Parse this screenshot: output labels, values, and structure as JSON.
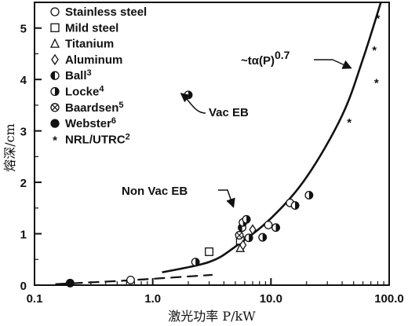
{
  "chart_data": {
    "type": "scatter",
    "x_scale": "log",
    "xlim": [
      0.1,
      100
    ],
    "ylim": [
      0,
      5.5
    ],
    "x_ticks": [
      "0.1",
      "1.0",
      "10.0",
      "100.0"
    ],
    "y_ticks": [
      "0",
      "1",
      "2",
      "3",
      "4",
      "5"
    ],
    "xlabel": "激光功率 P/kW",
    "ylabel": "熔深/cm",
    "grid": false,
    "legend_position": "top-left",
    "legend": [
      {
        "key": "stainless",
        "label": "Stainless steel",
        "sup": "",
        "marker": "circle-open"
      },
      {
        "key": "mild",
        "label": "Mild steel",
        "sup": "",
        "marker": "square-open"
      },
      {
        "key": "titanium",
        "label": "Titanium",
        "sup": "",
        "marker": "triangle-open"
      },
      {
        "key": "aluminum",
        "label": "Aluminum",
        "sup": "",
        "marker": "diamond-open"
      },
      {
        "key": "ball",
        "label": "Ball",
        "sup": "3",
        "marker": "half-left-circle"
      },
      {
        "key": "locke",
        "label": "Locke",
        "sup": "4",
        "marker": "half-right-circle"
      },
      {
        "key": "baardsen",
        "label": "Baardsen",
        "sup": "5",
        "marker": "circle-cross"
      },
      {
        "key": "webster",
        "label": "Webster",
        "sup": "6",
        "marker": "circle-filled"
      },
      {
        "key": "nrl",
        "label": "NRL/UTRC",
        "sup": "2",
        "marker": "asterisk"
      }
    ],
    "series": [
      {
        "key": "stainless",
        "points": [
          [
            0.65,
            0.1
          ],
          [
            9.5,
            1.17
          ],
          [
            14.5,
            1.6
          ]
        ]
      },
      {
        "key": "mild",
        "points": [
          [
            3.0,
            0.65
          ],
          [
            5.5,
            0.87
          ]
        ]
      },
      {
        "key": "titanium",
        "points": [
          [
            5.5,
            0.72
          ]
        ]
      },
      {
        "key": "aluminum",
        "points": [
          [
            5.8,
            0.78
          ],
          [
            7.0,
            1.08
          ]
        ]
      },
      {
        "key": "ball",
        "points": [
          [
            5.7,
            1.12
          ]
        ]
      },
      {
        "key": "locke",
        "points": [
          [
            5.8,
            1.22
          ],
          [
            16.0,
            1.55
          ],
          [
            11.0,
            1.12
          ],
          [
            21.0,
            1.75
          ],
          [
            8.5,
            0.93
          ],
          [
            2.3,
            0.45
          ],
          [
            6.5,
            0.92
          ],
          [
            6.2,
            1.28
          ]
        ]
      },
      {
        "key": "baardsen",
        "points": [
          [
            5.4,
            0.97
          ]
        ]
      },
      {
        "key": "webster",
        "points": [
          [
            0.2,
            0.04
          ]
        ]
      },
      {
        "key": "nrl",
        "points": [
          [
            46.0,
            3.18
          ],
          [
            78.0,
            3.95
          ],
          [
            75.0,
            4.58
          ],
          [
            80.0,
            5.2
          ]
        ]
      }
    ],
    "vac_eb_point": {
      "key": "locke",
      "x": 2.0,
      "y": 3.7
    },
    "curves": [
      {
        "style": "solid",
        "points": [
          [
            1.2,
            0.25
          ],
          [
            3.0,
            0.45
          ],
          [
            5.0,
            0.75
          ],
          [
            10.0,
            1.3
          ],
          [
            20.0,
            2.1
          ],
          [
            40.0,
            3.3
          ],
          [
            60.0,
            4.4
          ],
          [
            85.0,
            5.5
          ]
        ]
      },
      {
        "style": "dashed",
        "points": [
          [
            0.15,
            0.02
          ],
          [
            0.5,
            0.08
          ],
          [
            1.5,
            0.15
          ],
          [
            3.2,
            0.2
          ]
        ]
      }
    ],
    "annotations": {
      "power_law": "~tα(P)",
      "power_law_exp": "0.7",
      "vac_eb": "Vac EB",
      "non_vac_eb": "Non Vac EB"
    }
  }
}
